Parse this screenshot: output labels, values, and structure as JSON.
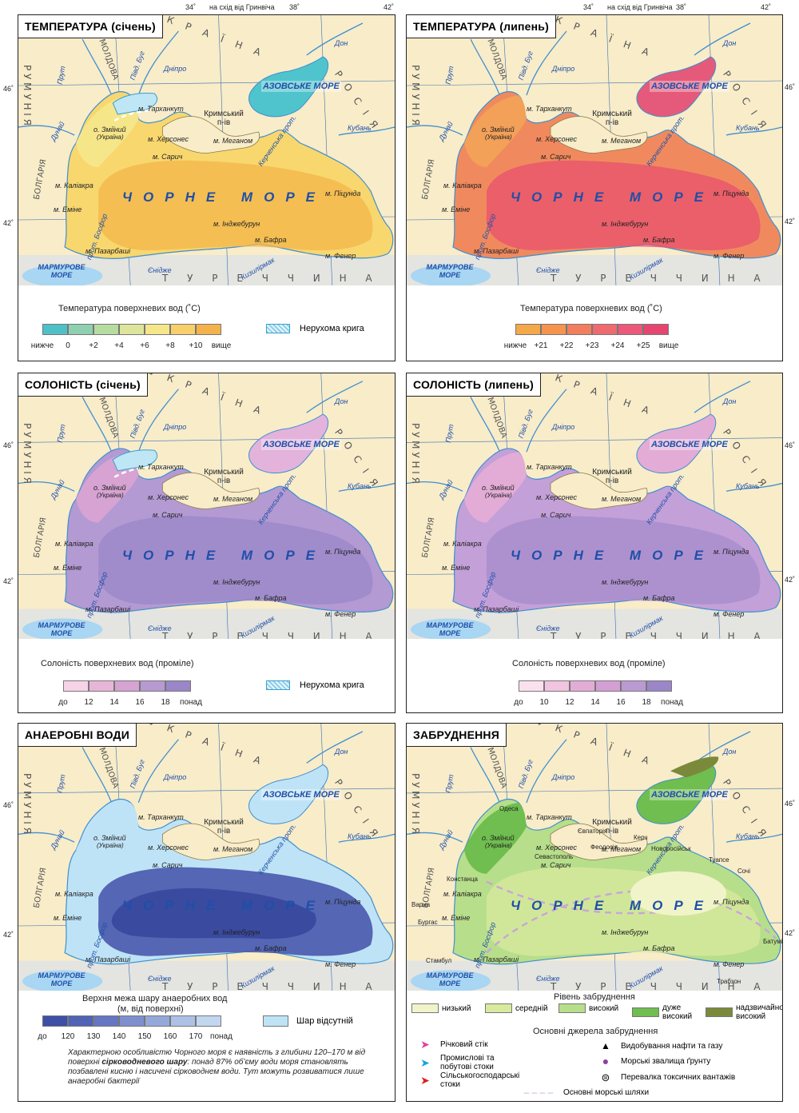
{
  "top_coords": {
    "lon34": "34˚",
    "east_of": "на схід від Гринвіча",
    "lon38": "38˚",
    "lon42": "42˚"
  },
  "lat_labels": {
    "lat46": "46˚",
    "lat42": "42˚"
  },
  "map_labels": {
    "azov": "АЗОВСЬКЕ МОРЕ",
    "black_sea": "ЧОРНЕ МОРЕ",
    "marmara": "МАРМУРОВЕ МОРЕ",
    "tarkhankut": "м. Тарханкут",
    "crimea": "Кримський п-ів",
    "zmiinyi": "о. Зміїний",
    "zmiinyi_note": "(Україна)",
    "khersones": "м. Херсонес",
    "meganom": "м. Меганом",
    "sarych": "м. Сарич",
    "kaliakra": "м. Каліакра",
    "emine": "м. Еміне",
    "pitsunda": "м. Піцунда",
    "indzhe": "м. Інджебурун",
    "bafra": "м. Бафра",
    "fener": "м. Фенер",
    "pazarbashi": "м. Пазарбаші",
    "bosfor": "прот. Босфор",
    "kerch": "Керченська прот.",
    "dnipro": "Дніпро",
    "pivd_buh": "Півд. Буг",
    "dunai": "Дунай",
    "prut": "Прут",
    "don": "Дон",
    "kuban": "Кубань",
    "endzhe": "Єнідже",
    "kyzylyrmak": "Кизилірмак",
    "romania": "Р У М У Н І Я",
    "moldova": "МОЛДОВА",
    "ukraine": "У К Р А Ї Н А",
    "russia": "Р О С І Я",
    "bulgaria": "БОЛГАРІЯ",
    "turkey": "Т У Р Е Ч Ч И Н А"
  },
  "panels": {
    "temp_jan": {
      "title": "ТЕМПЕРАТУРА (січень)",
      "legend_title": "Температура поверхневих вод (˚С)",
      "ticks": [
        "нижче",
        "0",
        "+2",
        "+4",
        "+6",
        "+8",
        "+10",
        "вище"
      ],
      "colors": [
        "#4fc0c8",
        "#8fd0b0",
        "#b6dca0",
        "#dde59a",
        "#f6e68a",
        "#f8cf6a",
        "#f3b24a"
      ],
      "ice_label": "Нерухома крига"
    },
    "temp_jul": {
      "title": "ТЕМПЕРАТУРА (липень)",
      "legend_title": "Температура поверхневих вод (˚С)",
      "ticks": [
        "нижче",
        "+21",
        "+22",
        "+23",
        "+24",
        "+25",
        "вище"
      ],
      "colors": [
        "#f4a848",
        "#f6944e",
        "#f27e5e",
        "#ef6a6e",
        "#ec587a",
        "#e6456f"
      ]
    },
    "sal_jan": {
      "title": "СОЛОНІСТЬ (січень)",
      "legend_title": "Солоність поверхневих вод (проміле)",
      "ticks": [
        "до",
        "12",
        "14",
        "16",
        "18",
        "понад"
      ],
      "colors": [
        "#f6d3e6",
        "#e7b6d6",
        "#d6a3d2",
        "#b79ad2",
        "#9a86c8"
      ],
      "ice_label": "Нерухома крига"
    },
    "sal_jul": {
      "title": "СОЛОНІСТЬ (липень)",
      "legend_title": "Солоність поверхневих вод (проміле)",
      "ticks": [
        "до",
        "10",
        "12",
        "14",
        "16",
        "18",
        "понад"
      ],
      "colors": [
        "#fbe1ee",
        "#f1c4df",
        "#e3acd6",
        "#d49fd4",
        "#bb9ad4",
        "#9b86c8"
      ]
    },
    "anaerobic": {
      "title": "АНАЕРОБНІ ВОДИ",
      "legend_title_1": "Верхня межа шару анаеробних вод",
      "legend_title_2": "(м, від поверхні)",
      "ticks": [
        "до",
        "120",
        "130",
        "140",
        "150",
        "160",
        "170",
        "понад"
      ],
      "colors": [
        "#3e4fa6",
        "#5063b4",
        "#6577c2",
        "#7d8fcd",
        "#94a8d9",
        "#adc1e6",
        "#c3d6f0"
      ],
      "absent_label": "Шар відсутній",
      "absent_color": "#bfe3f6",
      "note_1": "Характерною особливістю Чорного моря є наявність з глибини 120–170 м від поверхні ",
      "note_bold": "сірководневого шару",
      "note_2": ": понад 87% об’єму води моря становлять позбавлені кисню і насичені сірководнем води. Тут можуть розвиватися лише анаеробні бактерії"
    },
    "pollution": {
      "title": "ЗАБРУДНЕННЯ",
      "level_title": "Рівень забруднення",
      "levels": [
        {
          "label": "низький",
          "color": "#f1f4c9"
        },
        {
          "label": "середній",
          "color": "#d8ea9e"
        },
        {
          "label": "високий",
          "color": "#b7de8a"
        },
        {
          "label": "дуже високий",
          "color": "#6fbe4f"
        },
        {
          "label": "надзвичайно високий",
          "color": "#7b8a3a"
        }
      ],
      "sources_title": "Основні джерела забруднення",
      "sources": {
        "river": "Річковий стік",
        "industrial": "Промислові та побутові стоки",
        "agri": "Сільськогосподарські стоки",
        "oil": "Видобування нафти та газу",
        "dumps": "Морські звалища ґрунту",
        "toxic": "Перевалка токсичних вантажів",
        "routes": "Основні морські шляхи"
      },
      "cities": {
        "odesa": "Одеса",
        "konstanta": "Констанца",
        "varna": "Варна",
        "burgas": "Бургас",
        "stambul": "Стамбул",
        "yevpatoriia": "Євпаторія",
        "sevastopol": "Севастополь",
        "feodosiia": "Феодосія",
        "kerch": "Керч",
        "novorosiisk": "Новоросійськ",
        "tuapse": "Туапсе",
        "sochi": "Сочі",
        "batumi": "Батумі",
        "trabzon": "Трабзон"
      }
    }
  }
}
